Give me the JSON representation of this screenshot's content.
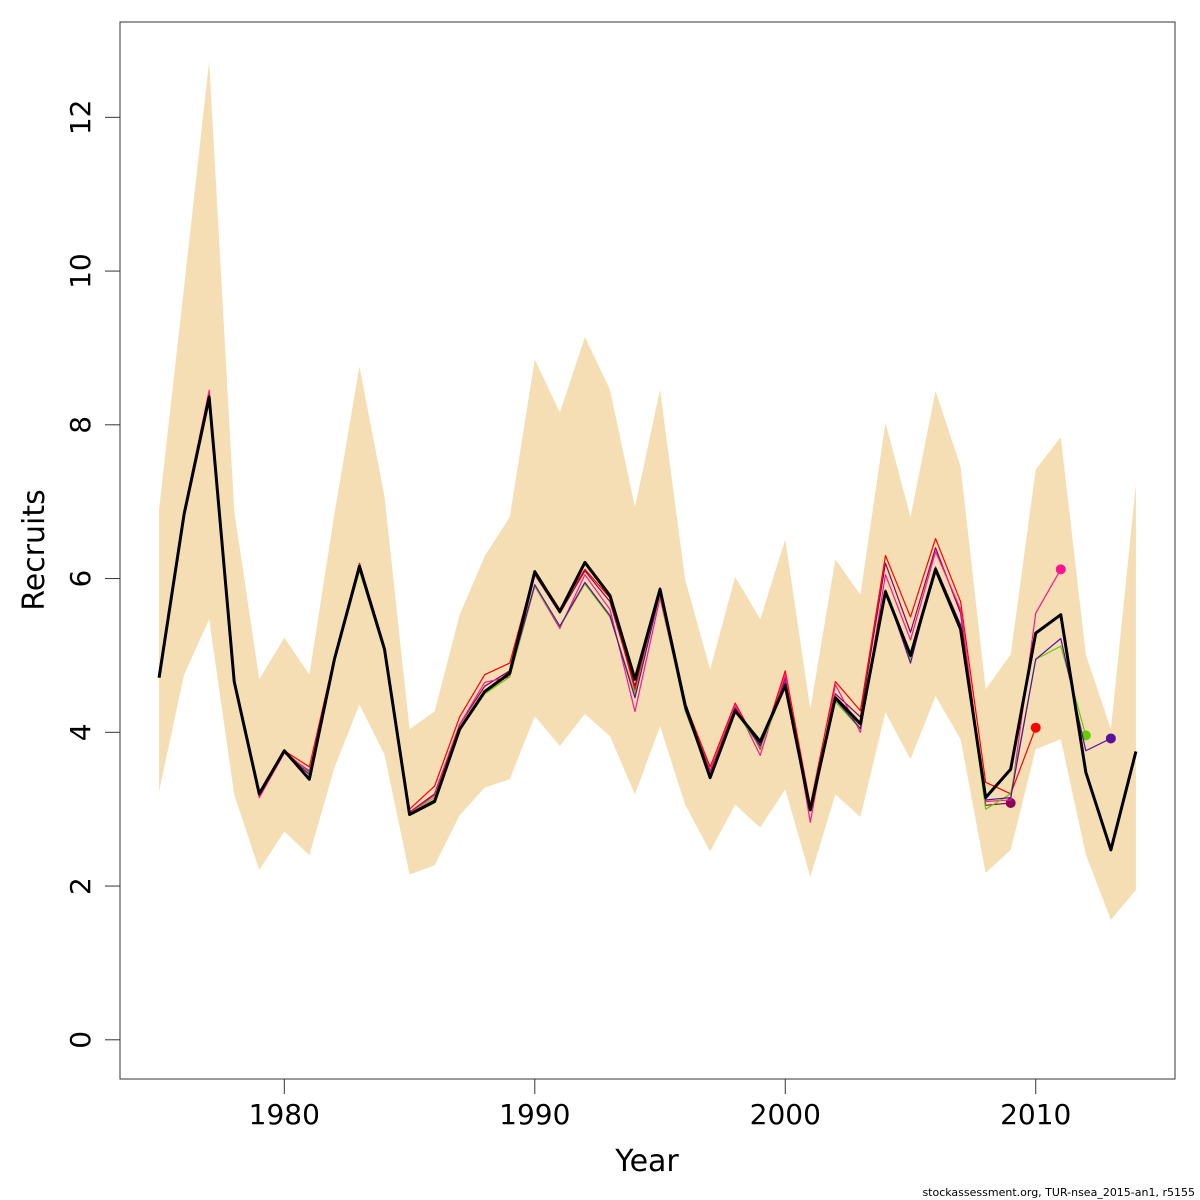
{
  "chart_data": {
    "type": "line",
    "x": [
      1975,
      1976,
      1977,
      1978,
      1979,
      1980,
      1981,
      1982,
      1983,
      1984,
      1985,
      1986,
      1987,
      1988,
      1989,
      1990,
      1991,
      1992,
      1993,
      1994,
      1995,
      1996,
      1997,
      1998,
      1999,
      2000,
      2001,
      2002,
      2003,
      2004,
      2005,
      2006,
      2007,
      2008,
      2009,
      2010,
      2011,
      2012,
      2013,
      2014
    ],
    "xlabel": "Year",
    "ylabel": "Recruits",
    "xlim": [
      1973.44,
      2015.56
    ],
    "xticks": [
      1980,
      1990,
      2000,
      2010
    ],
    "ylim": [
      -0.51,
      13.24
    ],
    "yticks": [
      0,
      2,
      4,
      6,
      8,
      10,
      12
    ],
    "band_color": "#f5deb3",
    "band_upper": [
      6.9,
      9.8,
      12.73,
      6.88,
      4.69,
      5.23,
      4.75,
      6.84,
      8.76,
      7.07,
      4.04,
      4.27,
      5.53,
      6.29,
      6.8,
      8.85,
      8.16,
      9.14,
      8.46,
      6.93,
      8.46,
      5.99,
      4.82,
      6.02,
      5.47,
      6.51,
      4.3,
      6.25,
      5.79,
      8.03,
      6.8,
      8.44,
      7.46,
      4.56,
      5.01,
      7.42,
      7.84,
      5.01,
      4.04,
      7.23
    ],
    "band_lower": [
      3.23,
      4.75,
      5.47,
      3.19,
      2.21,
      2.71,
      2.4,
      3.54,
      4.36,
      3.71,
      2.15,
      2.27,
      2.92,
      3.28,
      3.39,
      4.21,
      3.82,
      4.24,
      3.95,
      3.19,
      4.08,
      3.06,
      2.45,
      3.06,
      2.76,
      3.26,
      2.12,
      3.19,
      2.9,
      4.26,
      3.65,
      4.47,
      3.91,
      2.17,
      2.47,
      3.78,
      3.91,
      2.41,
      1.56,
      1.95
    ],
    "series": [
      {
        "color": "#8b005a",
        "values": [
          4.75,
          6.84,
          8.4,
          4.66,
          3.2,
          3.75,
          3.48,
          4.94,
          6.17,
          5.08,
          2.96,
          3.2,
          4.1,
          4.6,
          4.8,
          6.05,
          5.55,
          6.1,
          5.7,
          4.6,
          5.85,
          4.35,
          3.5,
          4.32,
          3.84,
          4.7,
          3.02,
          4.5,
          4.2,
          6.2,
          5.3,
          6.4,
          5.55,
          3.05,
          3.08,
          null,
          null,
          null,
          null,
          null
        ]
      },
      {
        "color": "#ff0000",
        "values": [
          4.78,
          6.86,
          8.42,
          4.68,
          3.22,
          3.76,
          3.55,
          4.98,
          6.2,
          5.12,
          3.0,
          3.3,
          4.2,
          4.75,
          4.9,
          6.1,
          5.6,
          6.12,
          5.75,
          4.55,
          5.88,
          4.38,
          3.55,
          4.38,
          3.78,
          4.8,
          3.05,
          4.66,
          4.28,
          6.3,
          5.5,
          6.52,
          5.7,
          3.35,
          3.2,
          4.06,
          null,
          null,
          null,
          null
        ]
      },
      {
        "color": "#ff1493",
        "values": [
          4.76,
          6.88,
          8.45,
          4.62,
          3.15,
          3.73,
          3.5,
          4.96,
          6.18,
          5.1,
          2.95,
          3.18,
          4.1,
          4.65,
          4.72,
          5.9,
          5.35,
          6.05,
          5.6,
          4.27,
          5.75,
          4.32,
          3.48,
          4.36,
          3.7,
          4.75,
          2.83,
          4.62,
          4.0,
          6.05,
          5.2,
          6.35,
          5.6,
          3.1,
          3.12,
          5.55,
          6.12,
          null,
          null,
          null
        ]
      },
      {
        "color": "#66cc00",
        "values": [
          4.73,
          6.83,
          8.3,
          4.67,
          3.22,
          3.74,
          3.47,
          4.92,
          6.1,
          5.05,
          2.94,
          3.15,
          4.02,
          4.5,
          4.72,
          5.9,
          5.37,
          5.93,
          5.5,
          4.5,
          5.8,
          4.28,
          3.43,
          4.28,
          3.8,
          4.6,
          3.02,
          4.4,
          4.04,
          5.82,
          4.95,
          6.1,
          5.38,
          3.0,
          3.2,
          4.95,
          5.12,
          3.96,
          null,
          null
        ]
      },
      {
        "color": "#5a0fa0",
        "values": [
          4.74,
          6.85,
          8.38,
          4.68,
          3.18,
          3.75,
          3.45,
          4.93,
          6.15,
          5.07,
          2.94,
          3.12,
          4.05,
          4.52,
          4.75,
          5.92,
          5.38,
          5.95,
          5.52,
          4.45,
          5.82,
          4.3,
          3.42,
          4.3,
          3.82,
          4.65,
          3.0,
          4.43,
          4.05,
          5.85,
          4.9,
          6.15,
          5.4,
          3.12,
          3.15,
          4.95,
          5.22,
          3.76,
          3.92,
          null
        ]
      },
      {
        "color": "#000000",
        "values": [
          4.71,
          6.84,
          8.36,
          4.66,
          3.2,
          3.76,
          3.39,
          4.95,
          6.16,
          5.08,
          2.93,
          3.1,
          4.04,
          4.53,
          4.77,
          6.09,
          5.57,
          6.21,
          5.78,
          4.69,
          5.86,
          4.36,
          3.41,
          4.28,
          3.88,
          4.61,
          2.99,
          4.45,
          4.11,
          5.83,
          5.0,
          6.12,
          5.34,
          3.15,
          3.52,
          5.29,
          5.53,
          3.48,
          2.47,
          3.75
        ]
      }
    ],
    "footer": "stockassessment.org, TUR-nsea_2015-an1, r5155"
  }
}
